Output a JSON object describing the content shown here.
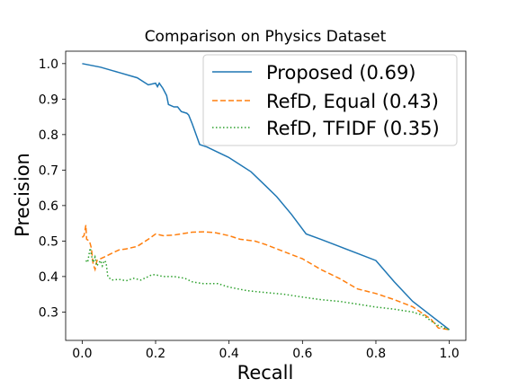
{
  "chart_data": {
    "type": "line",
    "title": "Comparison on Physics Dataset",
    "xlabel": "Recall",
    "ylabel": "Precision",
    "xlim": [
      -0.045,
      1.045
    ],
    "ylim": [
      0.22,
      1.035
    ],
    "xticks": [
      0.0,
      0.2,
      0.4,
      0.6,
      0.8,
      1.0
    ],
    "xtick_labels": [
      "0.0",
      "0.2",
      "0.4",
      "0.6",
      "0.8",
      "1.0"
    ],
    "yticks": [
      0.3,
      0.4,
      0.5,
      0.6,
      0.7,
      0.8,
      0.9,
      1.0
    ],
    "ytick_labels": [
      "0.3",
      "0.4",
      "0.5",
      "0.6",
      "0.7",
      "0.8",
      "0.9",
      "1.0"
    ],
    "legend_position": "top-right",
    "grid": false,
    "series": [
      {
        "name": "Proposed (0.69)",
        "color": "#1f77b4",
        "dash": "solid",
        "points": [
          [
            0.0,
            1.0
          ],
          [
            0.05,
            0.99
          ],
          [
            0.1,
            0.975
          ],
          [
            0.15,
            0.96
          ],
          [
            0.18,
            0.94
          ],
          [
            0.2,
            0.945
          ],
          [
            0.205,
            0.935
          ],
          [
            0.21,
            0.945
          ],
          [
            0.22,
            0.93
          ],
          [
            0.23,
            0.91
          ],
          [
            0.235,
            0.885
          ],
          [
            0.25,
            0.878
          ],
          [
            0.26,
            0.878
          ],
          [
            0.27,
            0.865
          ],
          [
            0.285,
            0.86
          ],
          [
            0.29,
            0.855
          ],
          [
            0.3,
            0.83
          ],
          [
            0.32,
            0.772
          ],
          [
            0.34,
            0.765
          ],
          [
            0.37,
            0.75
          ],
          [
            0.4,
            0.735
          ],
          [
            0.43,
            0.715
          ],
          [
            0.46,
            0.695
          ],
          [
            0.5,
            0.655
          ],
          [
            0.53,
            0.625
          ],
          [
            0.57,
            0.575
          ],
          [
            0.61,
            0.52
          ],
          [
            0.65,
            0.505
          ],
          [
            0.7,
            0.485
          ],
          [
            0.75,
            0.465
          ],
          [
            0.8,
            0.445
          ],
          [
            0.85,
            0.385
          ],
          [
            0.9,
            0.33
          ],
          [
            0.95,
            0.29
          ],
          [
            1.0,
            0.25
          ]
        ]
      },
      {
        "name": "RefD, Equal (0.43)",
        "color": "#ff7f0e",
        "dash": "dashed",
        "points": [
          [
            0.0,
            0.51
          ],
          [
            0.005,
            0.515
          ],
          [
            0.01,
            0.545
          ],
          [
            0.012,
            0.505
          ],
          [
            0.02,
            0.5
          ],
          [
            0.025,
            0.48
          ],
          [
            0.03,
            0.435
          ],
          [
            0.035,
            0.42
          ],
          [
            0.04,
            0.445
          ],
          [
            0.05,
            0.45
          ],
          [
            0.06,
            0.455
          ],
          [
            0.08,
            0.465
          ],
          [
            0.1,
            0.475
          ],
          [
            0.12,
            0.478
          ],
          [
            0.15,
            0.485
          ],
          [
            0.18,
            0.505
          ],
          [
            0.2,
            0.52
          ],
          [
            0.22,
            0.515
          ],
          [
            0.25,
            0.517
          ],
          [
            0.28,
            0.522
          ],
          [
            0.3,
            0.525
          ],
          [
            0.33,
            0.526
          ],
          [
            0.36,
            0.524
          ],
          [
            0.4,
            0.515
          ],
          [
            0.43,
            0.505
          ],
          [
            0.47,
            0.5
          ],
          [
            0.5,
            0.49
          ],
          [
            0.55,
            0.47
          ],
          [
            0.6,
            0.45
          ],
          [
            0.65,
            0.42
          ],
          [
            0.7,
            0.395
          ],
          [
            0.75,
            0.365
          ],
          [
            0.8,
            0.352
          ],
          [
            0.85,
            0.335
          ],
          [
            0.9,
            0.315
          ],
          [
            0.95,
            0.28
          ],
          [
            0.97,
            0.255
          ],
          [
            1.0,
            0.25
          ]
        ]
      },
      {
        "name": "RefD, TFIDF (0.35)",
        "color": "#2ca02c",
        "dash": "dotted",
        "points": [
          [
            0.01,
            0.445
          ],
          [
            0.015,
            0.44
          ],
          [
            0.02,
            0.47
          ],
          [
            0.022,
            0.48
          ],
          [
            0.025,
            0.46
          ],
          [
            0.03,
            0.44
          ],
          [
            0.035,
            0.455
          ],
          [
            0.04,
            0.43
          ],
          [
            0.05,
            0.445
          ],
          [
            0.055,
            0.43
          ],
          [
            0.06,
            0.445
          ],
          [
            0.065,
            0.44
          ],
          [
            0.07,
            0.4
          ],
          [
            0.08,
            0.39
          ],
          [
            0.1,
            0.392
          ],
          [
            0.12,
            0.388
          ],
          [
            0.14,
            0.395
          ],
          [
            0.16,
            0.39
          ],
          [
            0.18,
            0.4
          ],
          [
            0.19,
            0.405
          ],
          [
            0.2,
            0.405
          ],
          [
            0.22,
            0.4
          ],
          [
            0.25,
            0.4
          ],
          [
            0.28,
            0.395
          ],
          [
            0.3,
            0.385
          ],
          [
            0.33,
            0.38
          ],
          [
            0.37,
            0.38
          ],
          [
            0.4,
            0.37
          ],
          [
            0.45,
            0.36
          ],
          [
            0.5,
            0.355
          ],
          [
            0.55,
            0.35
          ],
          [
            0.6,
            0.342
          ],
          [
            0.65,
            0.335
          ],
          [
            0.7,
            0.33
          ],
          [
            0.75,
            0.322
          ],
          [
            0.8,
            0.314
          ],
          [
            0.85,
            0.308
          ],
          [
            0.9,
            0.3
          ],
          [
            0.93,
            0.29
          ],
          [
            0.95,
            0.275
          ],
          [
            0.97,
            0.262
          ],
          [
            1.0,
            0.25
          ]
        ]
      }
    ]
  }
}
